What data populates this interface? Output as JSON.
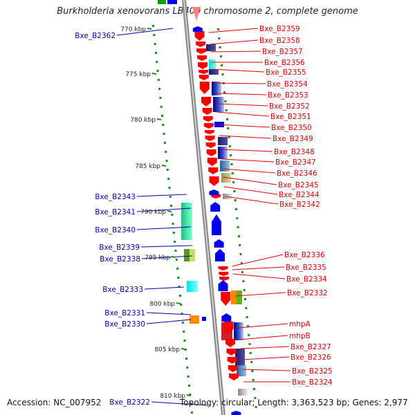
{
  "title": "Burkholderia xenovorans LB400 chromosome 2, complete genome",
  "footer": {
    "accession": "Accession: NC_007952",
    "summary": "Topology: circular; Length: 3,363,523 bp; Genes: 2,977"
  },
  "ticks": [
    "770 kbp",
    "775 kbp",
    "780 kbp",
    "785 kbp",
    "790 kbp",
    "795 kbp",
    "800 kbp",
    "805 kbp",
    "810 kbp"
  ],
  "labels_right": [
    "Bxe_B2359",
    "Bxe_B2358",
    "Bxe_B2357",
    "Bxe_B2356",
    "Bxe_B2355",
    "Bxe_B2354",
    "Bxe_B2353",
    "Bxe_B2352",
    "Bxe_B2351",
    "Bxe_B2350",
    "Bxe_B2349",
    "Bxe_B2348",
    "Bxe_B2347",
    "Bxe_B2346",
    "Bxe_B2345",
    "Bxe_B2344",
    "Bxe_B2342",
    "Bxe_B2336",
    "Bxe_B2335",
    "Bxe_B2334",
    "Bxe_B2332",
    "mhpA",
    "mhpB",
    "Bxe_B2327",
    "Bxe_B2326",
    "Bxe_B2325",
    "Bxe_B2324"
  ],
  "labels_left": [
    "Bxe_B2362",
    "Bxe_B2343",
    "Bxe_B2341",
    "Bxe_B2340",
    "Bxe_B2339",
    "Bxe_B2338",
    "Bxe_B2333",
    "Bxe_B2331",
    "Bxe_B2330",
    "Bxe_B2322"
  ],
  "colors": {
    "forward": "#ff0000",
    "reverse": "#0000ee",
    "backbone": "#999999",
    "gc_dots": "#1a8a1a",
    "label_right": "#dd0000",
    "label_left": "#0000aa"
  }
}
